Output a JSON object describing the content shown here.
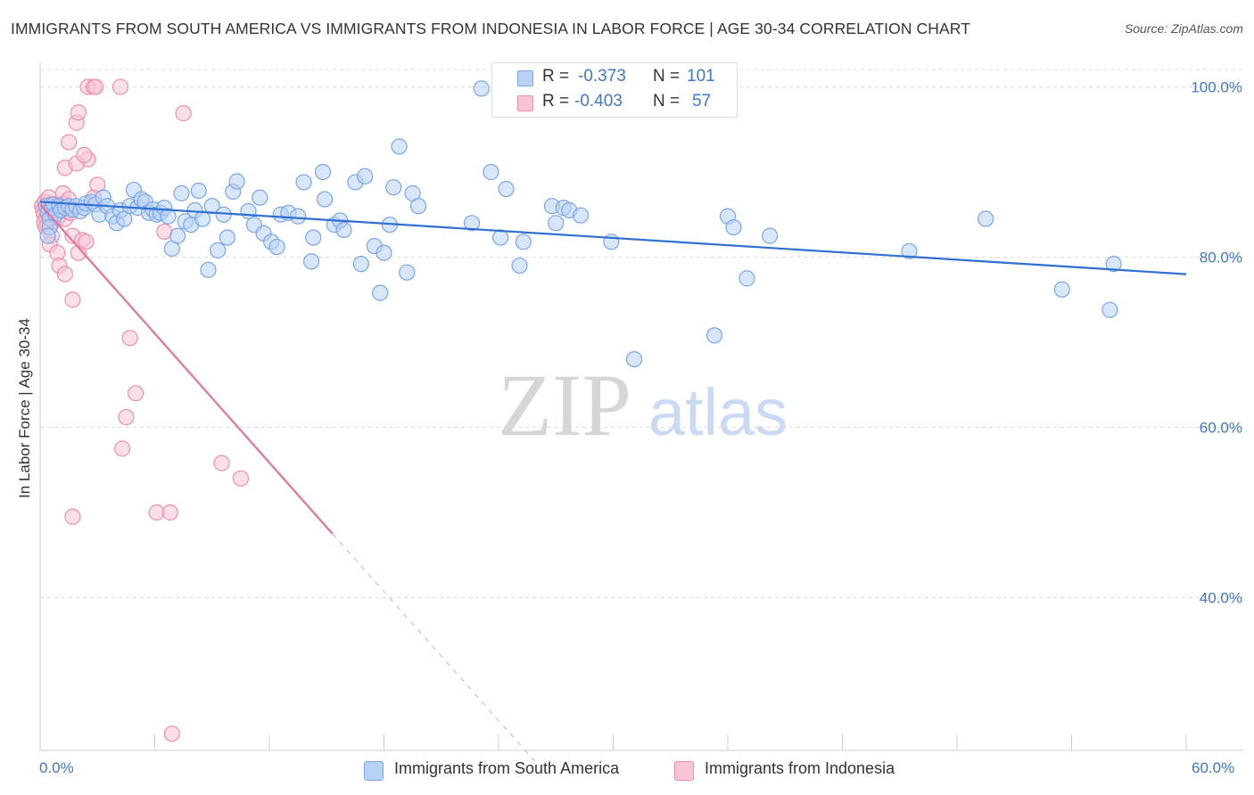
{
  "title": "IMMIGRANTS FROM SOUTH AMERICA VS IMMIGRANTS FROM INDONESIA IN LABOR FORCE | AGE 30-34 CORRELATION CHART",
  "source": "Source: ZipAtlas.com",
  "watermark": {
    "zip": "ZIP",
    "atlas": "atlas"
  },
  "stats": {
    "series1": {
      "r_label": "R =",
      "r_value": "-0.373",
      "n_label": "N =",
      "n_value": "101"
    },
    "series2": {
      "r_label": "R =",
      "r_value": "-0.403",
      "n_label": "N =",
      "n_value": "57"
    }
  },
  "legend": {
    "series1": "Immigrants from South America",
    "series2": "Immigrants from Indonesia"
  },
  "axes": {
    "y_title": "In Labor Force | Age 30-34",
    "x_min_label": "0.0%",
    "x_max_label": "60.0%"
  },
  "colors": {
    "blue_fill": "#b8d2f5",
    "blue_stroke": "#7aa6e6",
    "blue_line": "#2f6fd1",
    "pink_fill": "#f8c4d6",
    "pink_stroke": "#ef8fb0",
    "pink_line": "#e8709a",
    "tick_label": "#3e78cc",
    "grid": "#dddddd"
  },
  "chart_data": {
    "type": "scatter",
    "title": "IMMIGRANTS FROM SOUTH AMERICA VS IMMIGRANTS FROM INDONESIA IN LABOR FORCE | AGE 30-34 CORRELATION CHART",
    "xlabel": "",
    "ylabel": "In Labor Force | Age 30-34",
    "xlim": [
      0,
      60
    ],
    "ylim": [
      22,
      102
    ],
    "y_ticks": [
      {
        "value": 100,
        "label": "100.0%"
      },
      {
        "value": 80,
        "label": "80.0%"
      },
      {
        "value": 60,
        "label": "60.0%"
      },
      {
        "value": 40,
        "label": "40.0%"
      }
    ],
    "x_ticks": [
      0,
      6,
      12,
      18,
      24,
      30,
      36,
      42,
      48,
      54,
      60
    ],
    "grid": "horizontal-dashed",
    "legend_position": "bottom",
    "series": [
      {
        "name": "Immigrants from South America",
        "color": "#b8d2f5",
        "r": -0.373,
        "n": 101,
        "trend": {
          "x": [
            0,
            60
          ],
          "y": [
            86.5,
            78.0
          ]
        },
        "points": [
          [
            0.3,
            86.0
          ],
          [
            0.4,
            85.2
          ],
          [
            0.5,
            84.5
          ],
          [
            0.6,
            85.8
          ],
          [
            0.7,
            86.2
          ],
          [
            0.8,
            85.0
          ],
          [
            0.5,
            83.5
          ],
          [
            0.4,
            82.5
          ],
          [
            1.0,
            86.0
          ],
          [
            1.1,
            85.5
          ],
          [
            1.3,
            85.8
          ],
          [
            1.5,
            86.0
          ],
          [
            1.7,
            85.6
          ],
          [
            1.9,
            86.0
          ],
          [
            2.1,
            85.4
          ],
          [
            2.3,
            85.8
          ],
          [
            2.4,
            86.3
          ],
          [
            2.7,
            86.5
          ],
          [
            2.9,
            86.2
          ],
          [
            3.1,
            85.0
          ],
          [
            3.3,
            87.0
          ],
          [
            3.5,
            86.0
          ],
          [
            3.8,
            84.8
          ],
          [
            4.0,
            84.0
          ],
          [
            4.2,
            85.5
          ],
          [
            4.4,
            84.5
          ],
          [
            4.7,
            86.0
          ],
          [
            4.9,
            87.9
          ],
          [
            5.1,
            85.8
          ],
          [
            5.3,
            86.8
          ],
          [
            5.5,
            86.5
          ],
          [
            5.7,
            85.2
          ],
          [
            5.9,
            85.6
          ],
          [
            6.1,
            85.0
          ],
          [
            6.3,
            85.2
          ],
          [
            6.5,
            85.8
          ],
          [
            6.7,
            84.8
          ],
          [
            6.9,
            81.0
          ],
          [
            7.2,
            82.5
          ],
          [
            7.4,
            87.5
          ],
          [
            7.6,
            84.2
          ],
          [
            7.9,
            83.8
          ],
          [
            8.1,
            85.5
          ],
          [
            8.3,
            87.8
          ],
          [
            8.5,
            84.5
          ],
          [
            8.8,
            78.5
          ],
          [
            9.0,
            86.0
          ],
          [
            9.3,
            80.8
          ],
          [
            9.6,
            85.0
          ],
          [
            9.8,
            82.3
          ],
          [
            10.1,
            87.7
          ],
          [
            10.3,
            88.9
          ],
          [
            10.9,
            85.4
          ],
          [
            11.2,
            83.8
          ],
          [
            11.5,
            87.0
          ],
          [
            11.7,
            82.8
          ],
          [
            12.1,
            81.8
          ],
          [
            12.4,
            81.2
          ],
          [
            12.6,
            85.0
          ],
          [
            13.0,
            85.2
          ],
          [
            13.5,
            84.8
          ],
          [
            13.8,
            88.8
          ],
          [
            14.2,
            79.5
          ],
          [
            14.3,
            82.3
          ],
          [
            14.8,
            90.0
          ],
          [
            14.9,
            86.8
          ],
          [
            15.4,
            83.8
          ],
          [
            15.7,
            84.3
          ],
          [
            15.9,
            83.2
          ],
          [
            16.5,
            88.8
          ],
          [
            16.8,
            79.2
          ],
          [
            17.0,
            89.5
          ],
          [
            17.5,
            81.3
          ],
          [
            17.8,
            75.8
          ],
          [
            18.0,
            80.5
          ],
          [
            18.3,
            83.8
          ],
          [
            18.5,
            88.2
          ],
          [
            18.8,
            93.0
          ],
          [
            19.2,
            78.2
          ],
          [
            19.5,
            87.5
          ],
          [
            19.8,
            86.0
          ],
          [
            23.1,
            99.8
          ],
          [
            22.6,
            84.0
          ],
          [
            23.6,
            90.0
          ],
          [
            24.1,
            82.3
          ],
          [
            24.4,
            88.0
          ],
          [
            25.1,
            79.0
          ],
          [
            25.3,
            81.8
          ],
          [
            26.8,
            86.0
          ],
          [
            27.0,
            84.0
          ],
          [
            27.4,
            85.8
          ],
          [
            27.7,
            85.5
          ],
          [
            28.3,
            84.9
          ],
          [
            29.9,
            81.8
          ],
          [
            31.1,
            68.0
          ],
          [
            35.3,
            70.8
          ],
          [
            36.0,
            84.8
          ],
          [
            36.3,
            83.5
          ],
          [
            37.0,
            77.5
          ],
          [
            38.2,
            82.5
          ],
          [
            45.5,
            80.7
          ],
          [
            49.5,
            84.5
          ],
          [
            53.5,
            76.2
          ],
          [
            56.0,
            73.8
          ],
          [
            56.2,
            79.2
          ]
        ]
      },
      {
        "name": "Immigrants from Indonesia",
        "color": "#f8c4d6",
        "r": -0.403,
        "n": 57,
        "trend": {
          "x": [
            0,
            15.3
          ],
          "y": [
            86.2,
            47.5
          ],
          "dashed_extension": {
            "x": [
              15.3,
              26.0
            ],
            "y": [
              47.5,
              20.5
            ]
          }
        },
        "points": [
          [
            0.1,
            86.0
          ],
          [
            0.15,
            85.5
          ],
          [
            0.2,
            85.0
          ],
          [
            0.25,
            86.5
          ],
          [
            0.3,
            84.5
          ],
          [
            0.35,
            84.0
          ],
          [
            0.4,
            85.8
          ],
          [
            0.45,
            87.0
          ],
          [
            0.5,
            84.8
          ],
          [
            0.55,
            86.2
          ],
          [
            0.6,
            85.0
          ],
          [
            0.65,
            85.6
          ],
          [
            0.7,
            84.2
          ],
          [
            0.8,
            86.0
          ],
          [
            0.85,
            85.2
          ],
          [
            0.9,
            84.6
          ],
          [
            1.0,
            86.2
          ],
          [
            1.05,
            85.0
          ],
          [
            1.1,
            85.9
          ],
          [
            1.2,
            87.5
          ],
          [
            1.25,
            86.3
          ],
          [
            1.3,
            84.5
          ],
          [
            1.4,
            85.4
          ],
          [
            1.5,
            86.8
          ],
          [
            1.6,
            85.2
          ],
          [
            0.2,
            84.0
          ],
          [
            0.3,
            83.5
          ],
          [
            0.6,
            82.5
          ],
          [
            0.5,
            81.5
          ],
          [
            0.9,
            80.5
          ],
          [
            1.0,
            79.0
          ],
          [
            1.3,
            78.0
          ],
          [
            1.7,
            82.5
          ],
          [
            2.0,
            80.5
          ],
          [
            2.2,
            82.0
          ],
          [
            2.4,
            81.8
          ],
          [
            2.5,
            91.5
          ],
          [
            2.8,
            87.0
          ],
          [
            1.5,
            93.5
          ],
          [
            1.9,
            95.8
          ],
          [
            2.0,
            97.0
          ],
          [
            1.3,
            90.5
          ],
          [
            1.9,
            91.0
          ],
          [
            2.3,
            92.0
          ],
          [
            2.5,
            100.0
          ],
          [
            2.8,
            100.0
          ],
          [
            2.9,
            100.0
          ],
          [
            4.2,
            100.0
          ],
          [
            7.5,
            96.9
          ],
          [
            3.0,
            88.5
          ],
          [
            1.7,
            75.0
          ],
          [
            4.7,
            70.5
          ],
          [
            5.0,
            64.0
          ],
          [
            4.5,
            61.2
          ],
          [
            4.3,
            57.5
          ],
          [
            9.5,
            55.8
          ],
          [
            10.5,
            54.0
          ],
          [
            1.7,
            49.5
          ],
          [
            6.1,
            50.0
          ],
          [
            6.8,
            50.0
          ],
          [
            6.9,
            24.0
          ],
          [
            6.5,
            83.0
          ]
        ]
      }
    ]
  }
}
